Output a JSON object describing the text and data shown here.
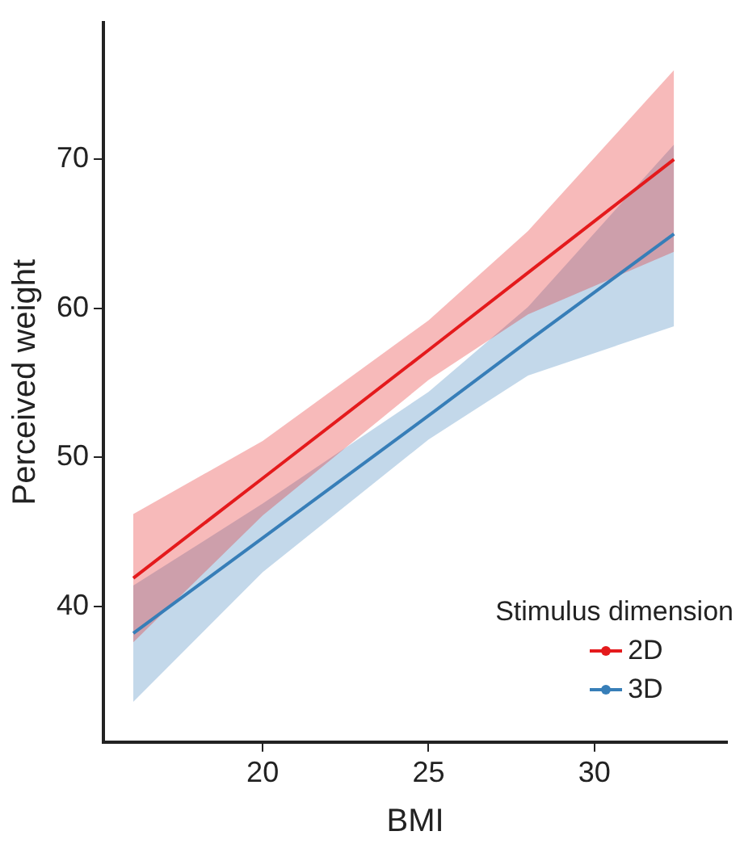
{
  "chart_data": {
    "type": "line",
    "xlabel": "BMI",
    "ylabel": "Perceived weight",
    "legend_title": "Stimulus dimension",
    "legend": "bottom right",
    "grid": false,
    "marker": "none",
    "line_style": "solid",
    "xlim": [
      15.2,
      34
    ],
    "xticks": [
      20,
      25,
      30
    ],
    "ylim": [
      30.9,
      79.2
    ],
    "yticks": [
      40,
      50,
      60,
      70
    ],
    "series": [
      {
        "name": "2D",
        "color": "#e41a1c",
        "x": [
          16.1,
          20,
          25,
          28,
          32.4
        ],
        "values": [
          41.9,
          48.6,
          57.2,
          62.4,
          70
        ],
        "lower": [
          37.6,
          46.1,
          55.2,
          59.6,
          63.8
        ],
        "upper": [
          46.2,
          51.1,
          59.2,
          65.2,
          76
        ]
      },
      {
        "name": "3D",
        "color": "#377eb8",
        "x": [
          16.1,
          20,
          25,
          28,
          32.4
        ],
        "values": [
          38.2,
          44.6,
          52.8,
          57.8,
          65
        ],
        "lower": [
          33.6,
          42.3,
          51.2,
          55.5,
          58.8
        ],
        "upper": [
          41.4,
          46.9,
          54.4,
          60.1,
          71
        ]
      }
    ]
  }
}
